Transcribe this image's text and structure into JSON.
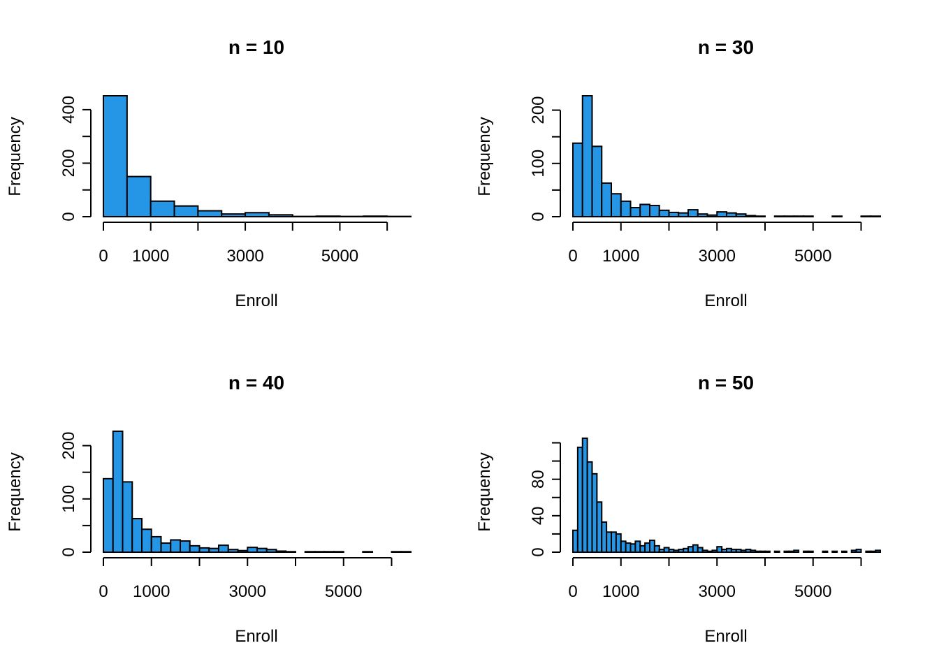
{
  "colors": {
    "bar_fill": "#2596E6",
    "bar_stroke": "#000000",
    "background": "#FFFFFF"
  },
  "chart_data": [
    {
      "type": "bar",
      "title": "n = 10",
      "xlabel": "Enroll",
      "ylabel": "Frequency",
      "bin_width": 500,
      "bin_start": 0,
      "values": [
        452,
        150,
        58,
        40,
        22,
        10,
        15,
        7,
        1,
        2,
        1,
        2,
        1
      ],
      "xlim": [
        0,
        6500
      ],
      "ylim": [
        0,
        452
      ],
      "x_ticks": [
        0,
        1000,
        2000,
        3000,
        4000,
        5000,
        6000
      ],
      "x_tick_labels": [
        "0",
        "1000",
        "",
        "3000",
        "",
        "5000",
        ""
      ],
      "y_ticks": [
        0,
        100,
        200,
        300,
        400
      ],
      "y_tick_labels": [
        "0",
        "",
        "200",
        "",
        "400"
      ],
      "grid": false
    },
    {
      "type": "bar",
      "title": "n = 30",
      "xlabel": "Enroll",
      "ylabel": "Frequency",
      "bin_width": 200,
      "bin_start": 0,
      "values": [
        138,
        227,
        132,
        63,
        43,
        29,
        17,
        23,
        21,
        12,
        8,
        7,
        13,
        5,
        3,
        9,
        7,
        5,
        2,
        1,
        0,
        1,
        1,
        1,
        1,
        0,
        0,
        1,
        0,
        0,
        1,
        1,
        1
      ],
      "xlim": [
        0,
        6400
      ],
      "ylim": [
        0,
        227
      ],
      "x_ticks": [
        0,
        1000,
        2000,
        3000,
        4000,
        5000,
        6000
      ],
      "x_tick_labels": [
        "0",
        "1000",
        "",
        "3000",
        "",
        "5000",
        ""
      ],
      "y_ticks": [
        0,
        50,
        100,
        150,
        200
      ],
      "y_tick_labels": [
        "0",
        "",
        "100",
        "",
        "200"
      ],
      "grid": false
    },
    {
      "type": "bar",
      "title": "n = 40",
      "xlabel": "Enroll",
      "ylabel": "Frequency",
      "bin_width": 200,
      "bin_start": 0,
      "values": [
        138,
        227,
        132,
        63,
        43,
        29,
        17,
        23,
        21,
        12,
        8,
        7,
        13,
        5,
        3,
        9,
        7,
        5,
        2,
        1,
        0,
        1,
        1,
        1,
        1,
        0,
        0,
        1,
        0,
        0,
        1,
        1
      ],
      "xlim": [
        0,
        6400
      ],
      "ylim": [
        0,
        227
      ],
      "x_ticks": [
        0,
        1000,
        2000,
        3000,
        4000,
        5000,
        6000
      ],
      "x_tick_labels": [
        "0",
        "1000",
        "",
        "3000",
        "",
        "5000",
        ""
      ],
      "y_ticks": [
        0,
        50,
        100,
        150,
        200
      ],
      "y_tick_labels": [
        "0",
        "",
        "100",
        "",
        "200"
      ],
      "grid": false
    },
    {
      "type": "bar",
      "title": "n = 50",
      "xlabel": "Enroll",
      "ylabel": "Frequency",
      "bin_width": 100,
      "bin_start": 0,
      "values": [
        24,
        115,
        125,
        99,
        86,
        55,
        33,
        22,
        22,
        20,
        12,
        10,
        9,
        12,
        7,
        10,
        13,
        7,
        3,
        5,
        3,
        2,
        3,
        4,
        6,
        8,
        5,
        2,
        1,
        2,
        6,
        3,
        4,
        3,
        3,
        2,
        3,
        2,
        1,
        1,
        1,
        0,
        1,
        0,
        1,
        1,
        2,
        0,
        1,
        1,
        0,
        0,
        1,
        0,
        1,
        0,
        1,
        0,
        2,
        3,
        0,
        1,
        1,
        2
      ],
      "xlim": [
        0,
        6400
      ],
      "ylim": [
        0,
        125
      ],
      "x_ticks": [
        0,
        1000,
        2000,
        3000,
        4000,
        5000,
        6000
      ],
      "x_tick_labels": [
        "0",
        "1000",
        "",
        "3000",
        "",
        "5000",
        ""
      ],
      "y_ticks": [
        0,
        20,
        40,
        60,
        80,
        100,
        120
      ],
      "y_tick_labels": [
        "0",
        "",
        "40",
        "",
        "80",
        "",
        ""
      ],
      "grid": false
    }
  ]
}
